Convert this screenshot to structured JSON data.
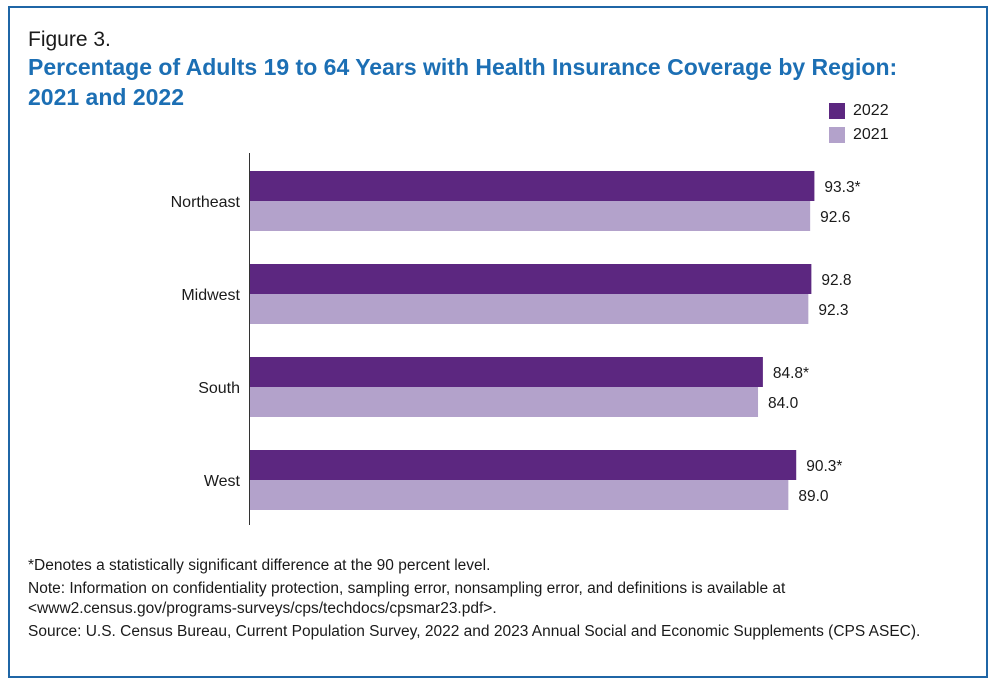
{
  "figure_label": "Figure 3.",
  "title": "Percentage of Adults 19 to 64 Years with Health Insurance Coverage by Region: 2021 and 2022",
  "colors": {
    "series_2022": "#5c2780",
    "series_2021": "#b3a2cb",
    "title": "#1c6fb4",
    "border": "#1f66a6"
  },
  "chart_data": {
    "type": "bar",
    "orientation": "horizontal",
    "categories": [
      "Northeast",
      "Midwest",
      "South",
      "West"
    ],
    "series": [
      {
        "name": "2022",
        "values": [
          93.3,
          92.8,
          84.8,
          90.3
        ],
        "labels": [
          "93.3*",
          "92.8",
          "84.8*",
          "90.3*"
        ]
      },
      {
        "name": "2021",
        "values": [
          92.6,
          92.3,
          84.0,
          89.0
        ],
        "labels": [
          "92.6",
          "92.3",
          "84.0",
          "89.0"
        ]
      }
    ],
    "xlim": [
      0,
      100
    ],
    "grid": false,
    "legend_position": "top-right"
  },
  "notes": {
    "significance": "*Denotes a statistically significant difference at the 90 percent level.",
    "note": "Note: Information on confidentiality protection, sampling error, nonsampling error, and definitions is available at <www2.census.gov/programs-surveys/cps/techdocs/cpsmar23.pdf>.",
    "source": "Source: U.S. Census Bureau, Current Population Survey, 2022 and 2023 Annual Social and Economic Supplements (CPS ASEC)."
  }
}
